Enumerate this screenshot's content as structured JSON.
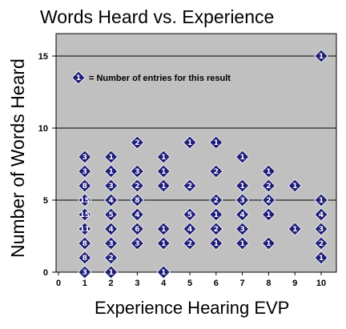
{
  "chart_data": {
    "type": "scatter",
    "title": "Words Heard vs. Experience",
    "xlabel": "Experience Hearing EVP",
    "ylabel": "Number of Words Heard",
    "xlim": [
      0,
      10
    ],
    "ylim": [
      0,
      16
    ],
    "x_ticks": [
      0,
      1,
      2,
      3,
      4,
      5,
      6,
      7,
      8,
      9,
      10
    ],
    "y_ticks": [
      0,
      5,
      10,
      15
    ],
    "grid": "horizontal",
    "background": "#c0c0c0",
    "marker_color": "#1f1f7a",
    "legend": {
      "marker_label": "1",
      "text": "= Number of entries for this result"
    },
    "points": [
      {
        "x": 1,
        "y": 8,
        "count": "3"
      },
      {
        "x": 1,
        "y": 7,
        "count": "3"
      },
      {
        "x": 1,
        "y": 6,
        "count": "8"
      },
      {
        "x": 1,
        "y": 5,
        "count": "15"
      },
      {
        "x": 1,
        "y": 4,
        "count": "15"
      },
      {
        "x": 1,
        "y": 3,
        "count": "11"
      },
      {
        "x": 1,
        "y": 2,
        "count": "8"
      },
      {
        "x": 1,
        "y": 1,
        "count": "8"
      },
      {
        "x": 1,
        "y": 0,
        "count": "3"
      },
      {
        "x": 2,
        "y": 8,
        "count": "1"
      },
      {
        "x": 2,
        "y": 7,
        "count": "1"
      },
      {
        "x": 2,
        "y": 6,
        "count": "3"
      },
      {
        "x": 2,
        "y": 5,
        "count": "4"
      },
      {
        "x": 2,
        "y": 4,
        "count": "5"
      },
      {
        "x": 2,
        "y": 3,
        "count": "4"
      },
      {
        "x": 2,
        "y": 2,
        "count": "3"
      },
      {
        "x": 2,
        "y": 1,
        "count": "2"
      },
      {
        "x": 2,
        "y": 0,
        "count": "1"
      },
      {
        "x": 3,
        "y": 9,
        "count": "2"
      },
      {
        "x": 3,
        "y": 7,
        "count": "3"
      },
      {
        "x": 3,
        "y": 6,
        "count": "2"
      },
      {
        "x": 3,
        "y": 5,
        "count": "8"
      },
      {
        "x": 3,
        "y": 4,
        "count": "4"
      },
      {
        "x": 3,
        "y": 3,
        "count": "6"
      },
      {
        "x": 3,
        "y": 2,
        "count": "3"
      },
      {
        "x": 4,
        "y": 8,
        "count": "1"
      },
      {
        "x": 4,
        "y": 7,
        "count": "1"
      },
      {
        "x": 4,
        "y": 6,
        "count": "1"
      },
      {
        "x": 4,
        "y": 3,
        "count": "1"
      },
      {
        "x": 4,
        "y": 2,
        "count": "1"
      },
      {
        "x": 4,
        "y": 0,
        "count": "1"
      },
      {
        "x": 5,
        "y": 9,
        "count": "1"
      },
      {
        "x": 5,
        "y": 6,
        "count": "2"
      },
      {
        "x": 5,
        "y": 4,
        "count": "5"
      },
      {
        "x": 5,
        "y": 3,
        "count": "4"
      },
      {
        "x": 5,
        "y": 2,
        "count": "2"
      },
      {
        "x": 6,
        "y": 9,
        "count": "1"
      },
      {
        "x": 6,
        "y": 7,
        "count": "2"
      },
      {
        "x": 6,
        "y": 5,
        "count": "2"
      },
      {
        "x": 6,
        "y": 4,
        "count": "1"
      },
      {
        "x": 6,
        "y": 3,
        "count": "2"
      },
      {
        "x": 6,
        "y": 2,
        "count": "1"
      },
      {
        "x": 7,
        "y": 8,
        "count": "1"
      },
      {
        "x": 7,
        "y": 6,
        "count": "1"
      },
      {
        "x": 7,
        "y": 5,
        "count": "3"
      },
      {
        "x": 7,
        "y": 4,
        "count": "4"
      },
      {
        "x": 7,
        "y": 3,
        "count": "3"
      },
      {
        "x": 7,
        "y": 2,
        "count": "1"
      },
      {
        "x": 8,
        "y": 7,
        "count": "1"
      },
      {
        "x": 8,
        "y": 6,
        "count": "2"
      },
      {
        "x": 8,
        "y": 5,
        "count": "2"
      },
      {
        "x": 8,
        "y": 4,
        "count": "1"
      },
      {
        "x": 8,
        "y": 2,
        "count": "1"
      },
      {
        "x": 9,
        "y": 6,
        "count": "1"
      },
      {
        "x": 9,
        "y": 3,
        "count": "1"
      },
      {
        "x": 10,
        "y": 15,
        "count": "1"
      },
      {
        "x": 10,
        "y": 5,
        "count": "1"
      },
      {
        "x": 10,
        "y": 4,
        "count": "4"
      },
      {
        "x": 10,
        "y": 3,
        "count": "3"
      },
      {
        "x": 10,
        "y": 2,
        "count": "2"
      },
      {
        "x": 10,
        "y": 1,
        "count": "1"
      }
    ]
  }
}
